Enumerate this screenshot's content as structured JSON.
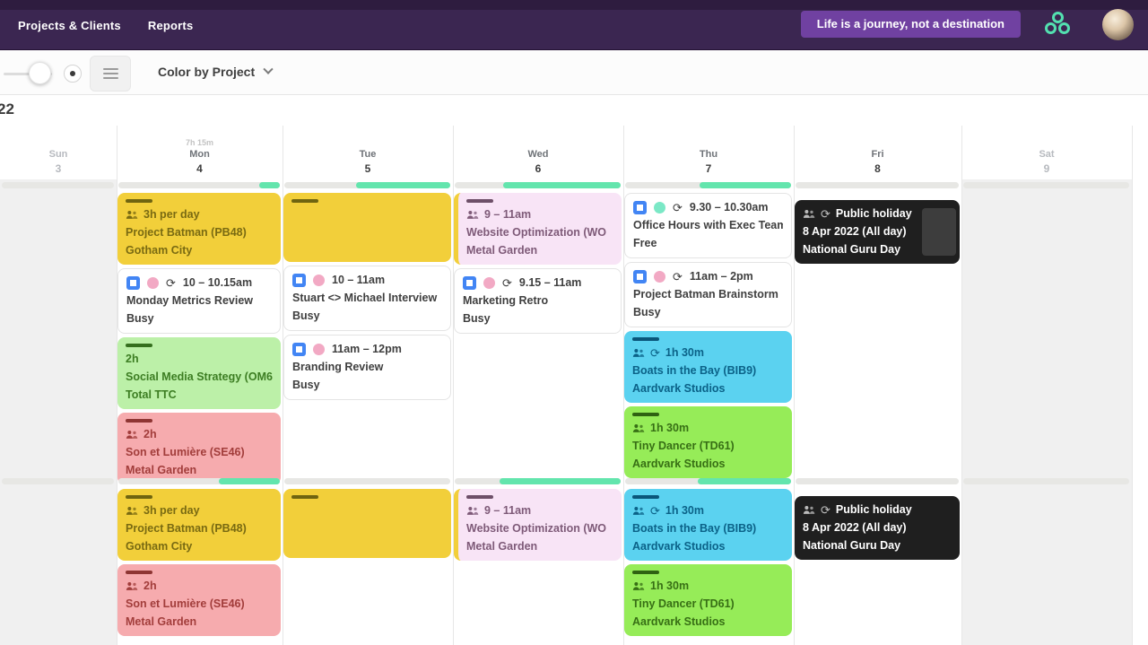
{
  "nav": {
    "items": [
      "Projects & Clients",
      "Reports"
    ],
    "quote": "Life is a journey, not a destination"
  },
  "toolbar": {
    "color_by_label": "Color by Project"
  },
  "date_label": "22",
  "palette": {
    "nav_bg": "#3B2651",
    "quote_pill_bg": "#7041A1",
    "brand_mint": "#53E0B0",
    "capacity_fill": "#63E5AD",
    "status": {
      "busy": "#C9605B",
      "free": "#79E2B7"
    },
    "yellow": {
      "bg": "#F2CF3A",
      "text": "#796A12",
      "strip": "#6F6410"
    },
    "green": {
      "bg": "#BCF0A8",
      "text": "#3C7D22",
      "strip": "#356F1E"
    },
    "pink": {
      "bg": "#F6ABAE",
      "text": "#A23D3B",
      "strip": "#8E3533"
    },
    "lavender": {
      "bg": "#F8E4F6",
      "text": "#7E5A78",
      "strip": "#6D4F68",
      "accent_left": "#F2CF3A"
    },
    "cyan": {
      "bg": "#5BD2F0",
      "text": "#0B6288",
      "strip": "#0A567A"
    },
    "brightgreen": {
      "bg": "#96EC58",
      "text": "#376F15",
      "strip": "#2F6212"
    },
    "black": {
      "bg": "#1F1F1F",
      "text": "#FFFFFF",
      "strip": "none"
    },
    "white": {
      "bg": "#FFFFFF",
      "text": "#3F3F3F"
    }
  },
  "calendar": {
    "days": [
      {
        "name": "Sun",
        "date": "3",
        "muted": true,
        "weekend": true,
        "total": ""
      },
      {
        "name": "Mon",
        "date": "4",
        "muted": false,
        "weekend": false,
        "total": "7h 15m"
      },
      {
        "name": "Tue",
        "date": "5",
        "muted": false,
        "weekend": false,
        "total": ""
      },
      {
        "name": "Wed",
        "date": "6",
        "muted": false,
        "weekend": false,
        "total": ""
      },
      {
        "name": "Thu",
        "date": "7",
        "muted": false,
        "weekend": false,
        "total": ""
      },
      {
        "name": "Fri",
        "date": "8",
        "muted": false,
        "weekend": false,
        "total": ""
      },
      {
        "name": "Sat",
        "date": "9",
        "muted": true,
        "weekend": true,
        "total": ""
      }
    ],
    "sections": [
      {
        "capacity": {
          "1": [
            [
              0.87,
              1
            ]
          ],
          "2": [
            [
              0.43,
              1
            ]
          ],
          "3": [
            [
              0.29,
              1
            ]
          ],
          "4": [
            [
              0.45,
              1
            ]
          ]
        },
        "events": {
          "1": [
            {
              "style": "yellow",
              "lines": [
                {
                  "icons": [
                    "people"
                  ],
                  "text": "3h per day"
                },
                {
                  "text": "Project Batman (PB48)"
                },
                {
                  "text": "Gotham City"
                }
              ]
            },
            {
              "style": "white",
              "strip": "busy",
              "lines": [
                {
                  "icons": [
                    "gcal",
                    "circle-pink",
                    "sync"
                  ],
                  "text": "10 – 10.15am"
                },
                {
                  "text": "Monday Metrics Review"
                },
                {
                  "text": "Busy"
                }
              ]
            },
            {
              "style": "green",
              "lines": [
                {
                  "text": "2h"
                },
                {
                  "text": "Social Media Strategy (OM6"
                },
                {
                  "text": "Total TTC"
                }
              ]
            },
            {
              "style": "pink",
              "lines": [
                {
                  "icons": [
                    "people"
                  ],
                  "text": "2h"
                },
                {
                  "text": "Son et Lumière (SE46)"
                },
                {
                  "text": "Metal Garden"
                }
              ]
            }
          ],
          "2": [
            {
              "style": "yellow",
              "blank": true
            },
            {
              "style": "white",
              "strip": "busy",
              "lines": [
                {
                  "icons": [
                    "gcal",
                    "circle-pink"
                  ],
                  "text": "10 – 11am"
                },
                {
                  "text": "Stuart <> Michael Interview"
                },
                {
                  "text": "Busy"
                }
              ]
            },
            {
              "style": "white",
              "strip": "busy",
              "lines": [
                {
                  "icons": [
                    "gcal",
                    "circle-pink"
                  ],
                  "text": "11am – 12pm"
                },
                {
                  "text": "Branding Review"
                },
                {
                  "text": "Busy"
                }
              ]
            }
          ],
          "3": [
            {
              "style": "lavender",
              "lines": [
                {
                  "icons": [
                    "people"
                  ],
                  "text": "9 – 11am"
                },
                {
                  "text": "Website Optimization (WO"
                },
                {
                  "text": "Metal Garden"
                }
              ]
            },
            {
              "style": "white",
              "strip": "busy",
              "lines": [
                {
                  "icons": [
                    "gcal",
                    "circle-pink",
                    "sync"
                  ],
                  "text": "9.15 – 11am"
                },
                {
                  "text": "Marketing Retro"
                },
                {
                  "text": "Busy"
                }
              ]
            }
          ],
          "4": [
            {
              "style": "white",
              "strip": "free",
              "lines": [
                {
                  "icons": [
                    "gcal",
                    "circle-mint",
                    "sync"
                  ],
                  "text": "9.30 – 10.30am"
                },
                {
                  "text": "Office Hours with Exec Team"
                },
                {
                  "text": "Free"
                }
              ]
            },
            {
              "style": "white",
              "strip": "busy",
              "lines": [
                {
                  "icons": [
                    "gcal",
                    "circle-pink",
                    "sync"
                  ],
                  "text": "11am – 2pm"
                },
                {
                  "text": "Project Batman Brainstorm"
                },
                {
                  "text": "Busy"
                }
              ]
            },
            {
              "style": "cyan",
              "lines": [
                {
                  "icons": [
                    "people",
                    "sync"
                  ],
                  "text": "1h 30m"
                },
                {
                  "text": "Boats in the Bay (BIB9)"
                },
                {
                  "text": "Aardvark Studios"
                }
              ]
            },
            {
              "style": "brightgreen",
              "lines": [
                {
                  "icons": [
                    "people"
                  ],
                  "text": "1h 30m"
                },
                {
                  "text": "Tiny Dancer (TD61)"
                },
                {
                  "text": "Aardvark Studios"
                }
              ]
            }
          ],
          "5": [
            {
              "style": "black",
              "mt": 8,
              "panel": true,
              "lines": [
                {
                  "icons": [
                    "people",
                    "sync"
                  ],
                  "text": "Public holiday"
                },
                {
                  "text": "8 Apr 2022 (All day)"
                },
                {
                  "text": "National Guru Day"
                }
              ]
            }
          ]
        }
      },
      {
        "capacity": {
          "1": [
            [
              0.62,
              1
            ]
          ],
          "3": [
            [
              0.27,
              1
            ]
          ],
          "4": [
            [
              0.44,
              1
            ]
          ]
        },
        "events": {
          "1": [
            {
              "style": "yellow",
              "lines": [
                {
                  "icons": [
                    "people"
                  ],
                  "text": "3h per day"
                },
                {
                  "text": "Project Batman (PB48)"
                },
                {
                  "text": "Gotham City"
                }
              ]
            },
            {
              "style": "pink",
              "lines": [
                {
                  "icons": [
                    "people"
                  ],
                  "text": "2h"
                },
                {
                  "text": "Son et Lumière (SE46)"
                },
                {
                  "text": "Metal Garden"
                }
              ]
            }
          ],
          "2": [
            {
              "style": "yellow",
              "blank": true
            }
          ],
          "3": [
            {
              "style": "lavender",
              "lines": [
                {
                  "icons": [
                    "people"
                  ],
                  "text": "9 – 11am"
                },
                {
                  "text": "Website Optimization (WO"
                },
                {
                  "text": "Metal Garden"
                }
              ]
            }
          ],
          "4": [
            {
              "style": "cyan",
              "lines": [
                {
                  "icons": [
                    "people",
                    "sync"
                  ],
                  "text": "1h 30m"
                },
                {
                  "text": "Boats in the Bay (BIB9)"
                },
                {
                  "text": "Aardvark Studios"
                }
              ]
            },
            {
              "style": "brightgreen",
              "lines": [
                {
                  "icons": [
                    "people"
                  ],
                  "text": "1h 30m"
                },
                {
                  "text": "Tiny Dancer (TD61)"
                },
                {
                  "text": "Aardvark Studios"
                }
              ]
            }
          ],
          "5": [
            {
              "style": "black",
              "mt": 8,
              "lines": [
                {
                  "icons": [
                    "people",
                    "sync"
                  ],
                  "text": "Public holiday"
                },
                {
                  "text": "8 Apr 2022 (All day)"
                },
                {
                  "text": "National Guru Day"
                }
              ]
            }
          ]
        }
      }
    ]
  }
}
